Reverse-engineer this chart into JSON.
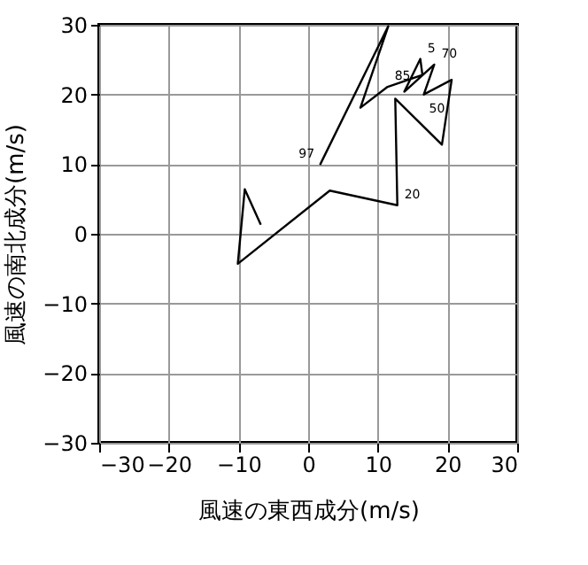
{
  "chart_data": {
    "type": "line",
    "xlabel": "風速の東西成分(m/s)",
    "ylabel": "風速の南北成分(m/s)",
    "series": [
      {
        "color": "#000000",
        "x": [
          -6.8,
          -9.1,
          -10.1,
          3.1,
          12.8,
          12.5,
          19.2,
          20.6,
          16.6,
          18.1,
          13.8,
          16.1,
          16.4,
          11.4,
          7.5,
          11.5,
          1.7
        ],
        "values": [
          1.3,
          6.4,
          -4.3,
          6.2,
          4.1,
          19.4,
          12.8,
          22.1,
          20.0,
          24.3,
          20.4,
          25.1,
          22.8,
          21.1,
          18.1,
          29.8,
          9.9
        ]
      }
    ],
    "xlim": [
      -30,
      30
    ],
    "ylim": [
      -30,
      30
    ],
    "xticks": [
      -30,
      -20,
      -10,
      0,
      10,
      20,
      30
    ],
    "yticks": [
      -30,
      -20,
      -10,
      0,
      10,
      20,
      30
    ],
    "grid": true,
    "marker": "none",
    "line_style": "solid",
    "annotations": [
      {
        "text": "20",
        "x": 12.8,
        "y": 4.1
      },
      {
        "text": "85",
        "x": 11.4,
        "y": 21.1
      },
      {
        "text": "5",
        "x": 16.1,
        "y": 25.1
      },
      {
        "text": "70",
        "x": 18.1,
        "y": 24.3
      },
      {
        "text": "50",
        "x": 16.6,
        "y": 20.0
      },
      {
        "text": "97",
        "x": 1.7,
        "y": 9.9
      }
    ]
  }
}
